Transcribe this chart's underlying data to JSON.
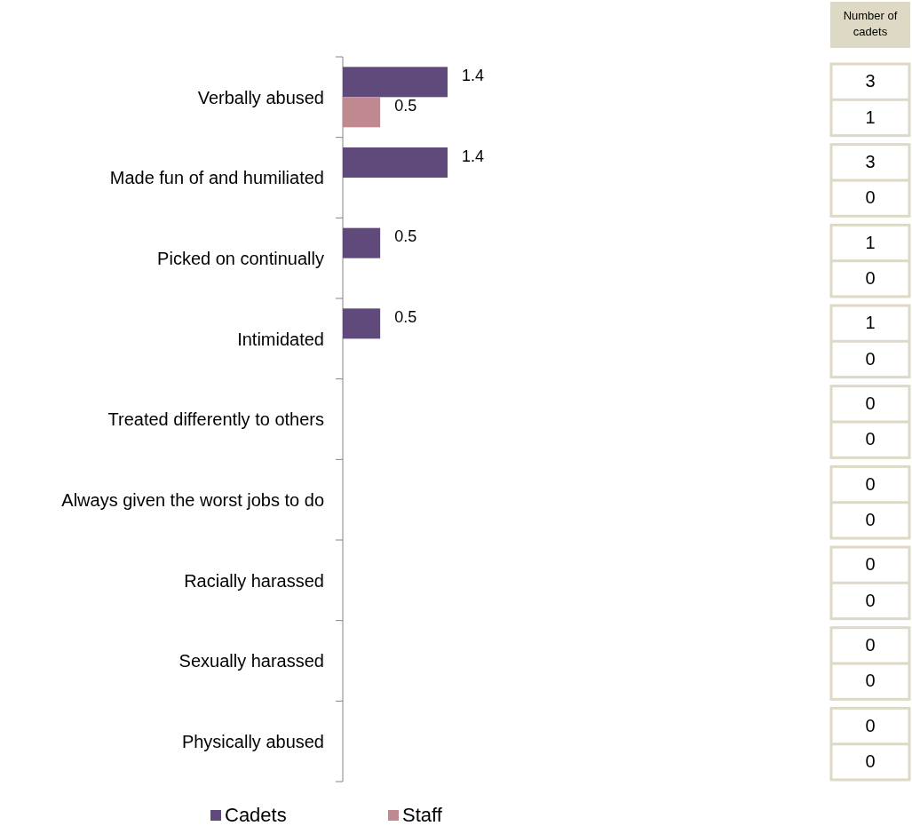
{
  "chart_data": [
    {
      "type": "bar",
      "orientation": "horizontal",
      "categories": [
        "Verbally abused",
        "Made fun of and humiliated",
        "Picked on continually",
        "Intimidated",
        "Treated differently to others",
        "Always given the worst jobs to do",
        "Racially harassed",
        "Sexually harassed",
        "Physically abused"
      ],
      "series": [
        {
          "name": "Cadets",
          "color": "#604a7b",
          "values": [
            1.4,
            1.4,
            0.5,
            0.5,
            0,
            0,
            0,
            0,
            0
          ],
          "value_labels": [
            "1.4",
            "1.4",
            "0.5",
            "0.5",
            null,
            null,
            null,
            null,
            null
          ]
        },
        {
          "name": "Staff",
          "color": "#c0898f",
          "values": [
            0.5,
            0,
            0,
            0,
            0,
            0,
            0,
            0,
            0
          ],
          "value_labels": [
            "0.5",
            null,
            null,
            null,
            null,
            null,
            null,
            null,
            null
          ]
        }
      ],
      "legend": "bottom"
    },
    {
      "type": "other",
      "title": "Number of cadets",
      "annotations": [
        "3",
        "1",
        "3",
        "0",
        "1",
        "0",
        "1",
        "0",
        "0",
        "0",
        "0",
        "0",
        "0",
        "0",
        "0",
        "0",
        "0",
        "0"
      ]
    }
  ]
}
